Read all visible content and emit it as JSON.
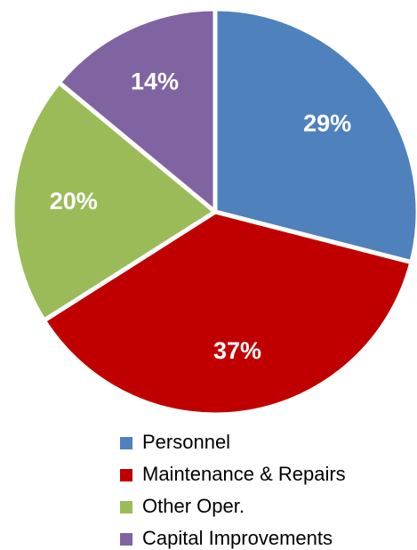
{
  "chart_data": {
    "type": "pie",
    "categories": [
      "Personnel",
      "Maintenance & Repairs",
      "Other Oper.",
      "Capital Improvements"
    ],
    "values": [
      29,
      37,
      20,
      14
    ],
    "value_labels": [
      "29%",
      "37%",
      "20%",
      "14%"
    ],
    "colors": [
      "#4f81bd",
      "#c00000",
      "#9bbb59",
      "#8064a2"
    ],
    "legend": "bottom"
  }
}
